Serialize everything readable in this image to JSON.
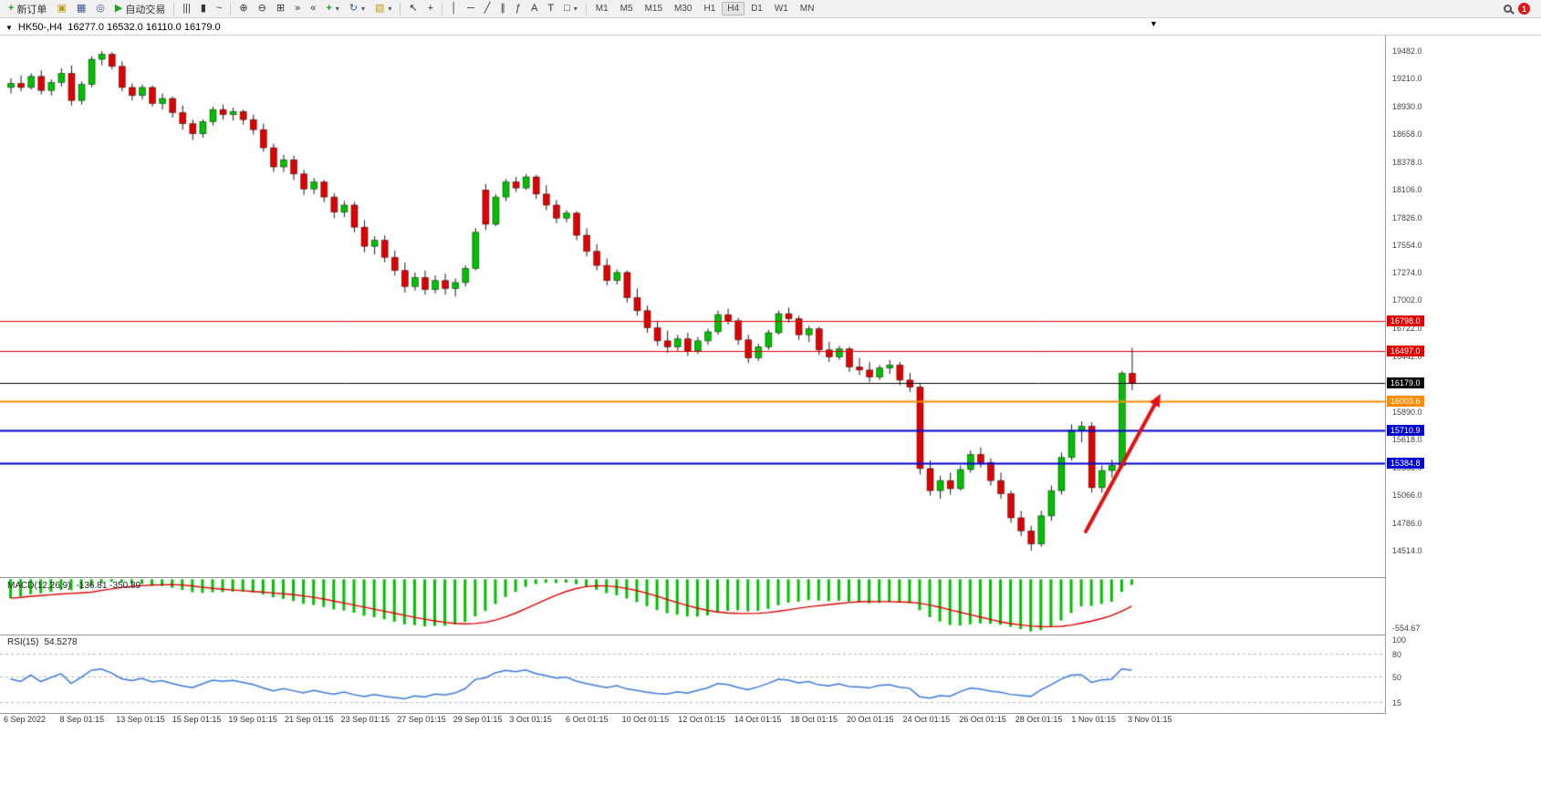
{
  "toolbar": {
    "new_order_label": "新订单",
    "auto_trading_label": "自动交易",
    "timeframes": [
      "M1",
      "M5",
      "M15",
      "M30",
      "H1",
      "H4",
      "D1",
      "W1",
      "MN"
    ],
    "active_timeframe": "H4",
    "notification_count": "1"
  },
  "icons": {
    "collapse": "▼",
    "new_order": "+",
    "data_window": "▣",
    "market_watch": "▦",
    "navigator": "◎",
    "autoplay": "▶",
    "chart_bars": "|||",
    "chart_candles": "▮",
    "chart_line": "~",
    "zoom_in": "⊕",
    "zoom_out": "⊖",
    "tile": "⊞",
    "autoscroll": "»",
    "shift": "«",
    "indicators": "+",
    "cycle": "↻",
    "template": "▧",
    "cursor": "↖",
    "crosshair": "+",
    "vline": "│",
    "hline": "─",
    "trend": "╱",
    "channel": "∥",
    "fibo": "ƒ",
    "text": "A",
    "label": "T",
    "shapes": "□",
    "dropdown": "▾",
    "scroll_marker": "▼"
  },
  "chart": {
    "symbol_tf": "HK50-,H4",
    "ohlc": "16277.0 16532.0 16110.0 16179.0"
  },
  "chart_data": {
    "type": "candlestick",
    "symbol": "HK50-",
    "timeframe": "H4",
    "title": "HK50-,H4  16277.0 16532.0 16110.0 16179.0",
    "colors": {
      "up": "#00c000",
      "down": "#e00000",
      "wick": "#1a1a1a",
      "macd_bar": "#00c000",
      "macd_signal": "#e00000",
      "rsi_line": "#3c78dc",
      "grid_dash": "#b5b5b5",
      "arrow": "#e21212"
    },
    "price_axis": {
      "top_price": 19636,
      "bottom_price": 14241,
      "labels": [
        19482.0,
        19210.0,
        18930.0,
        18658.0,
        18378.0,
        18106.0,
        17826.0,
        17554.0,
        17274.0,
        17002.0,
        16722.0,
        16442.0,
        15890.0,
        15618.0,
        15338.0,
        15066.0,
        14786.0,
        14514.0
      ]
    },
    "levels": [
      {
        "price": 16798.0,
        "label": "16798.0",
        "color": "#e00000",
        "lw": 1
      },
      {
        "price": 16497.0,
        "label": "16497.0",
        "color": "#e00000",
        "lw": 1
      },
      {
        "price": 16179.0,
        "label": "16179.0",
        "color": "#000000",
        "lw": 1
      },
      {
        "price": 16003.6,
        "label": "16003.6",
        "color": "#ff8c00",
        "lw": 2
      },
      {
        "price": 15710.9,
        "label": "15710.9",
        "color": "#0000d0",
        "lw": 2
      },
      {
        "price": 15384.8,
        "label": "15384.8",
        "color": "#0000d0",
        "lw": 2
      }
    ],
    "candles": [
      [
        19120,
        19210,
        19060,
        19160
      ],
      [
        19160,
        19240,
        19080,
        19120
      ],
      [
        19120,
        19260,
        19100,
        19230
      ],
      [
        19230,
        19290,
        19050,
        19090
      ],
      [
        19090,
        19200,
        19040,
        19170
      ],
      [
        19170,
        19310,
        19130,
        19260
      ],
      [
        19260,
        19340,
        18940,
        18990
      ],
      [
        18990,
        19180,
        18950,
        19150
      ],
      [
        19150,
        19430,
        19120,
        19400
      ],
      [
        19400,
        19482,
        19340,
        19450
      ],
      [
        19450,
        19470,
        19300,
        19330
      ],
      [
        19330,
        19380,
        19080,
        19120
      ],
      [
        19120,
        19160,
        18990,
        19040
      ],
      [
        19040,
        19150,
        19000,
        19120
      ],
      [
        19120,
        19140,
        18930,
        18960
      ],
      [
        18960,
        19060,
        18900,
        19010
      ],
      [
        19010,
        19030,
        18820,
        18870
      ],
      [
        18870,
        18940,
        18700,
        18760
      ],
      [
        18760,
        18800,
        18600,
        18660
      ],
      [
        18660,
        18800,
        18620,
        18780
      ],
      [
        18780,
        18930,
        18740,
        18900
      ],
      [
        18900,
        18950,
        18800,
        18850
      ],
      [
        18850,
        18920,
        18790,
        18880
      ],
      [
        18880,
        18900,
        18750,
        18800
      ],
      [
        18800,
        18850,
        18650,
        18700
      ],
      [
        18700,
        18760,
        18480,
        18520
      ],
      [
        18520,
        18560,
        18280,
        18330
      ],
      [
        18330,
        18450,
        18280,
        18400
      ],
      [
        18400,
        18440,
        18200,
        18260
      ],
      [
        18260,
        18300,
        18050,
        18110
      ],
      [
        18110,
        18220,
        18060,
        18180
      ],
      [
        18180,
        18200,
        17980,
        18030
      ],
      [
        18030,
        18070,
        17820,
        17880
      ],
      [
        17880,
        17990,
        17830,
        17950
      ],
      [
        17950,
        17980,
        17680,
        17730
      ],
      [
        17730,
        17800,
        17480,
        17540
      ],
      [
        17540,
        17640,
        17460,
        17600
      ],
      [
        17600,
        17650,
        17380,
        17430
      ],
      [
        17430,
        17500,
        17250,
        17300
      ],
      [
        17300,
        17380,
        17080,
        17140
      ],
      [
        17140,
        17280,
        17100,
        17230
      ],
      [
        17230,
        17300,
        17060,
        17110
      ],
      [
        17110,
        17250,
        17070,
        17200
      ],
      [
        17200,
        17270,
        17060,
        17120
      ],
      [
        17120,
        17220,
        17040,
        17180
      ],
      [
        17180,
        17350,
        17140,
        17320
      ],
      [
        17320,
        17720,
        17300,
        17680
      ],
      [
        18100,
        18160,
        17700,
        17760
      ],
      [
        17760,
        18060,
        17740,
        18030
      ],
      [
        18030,
        18210,
        17990,
        18180
      ],
      [
        18180,
        18230,
        18080,
        18120
      ],
      [
        18120,
        18260,
        18100,
        18230
      ],
      [
        18230,
        18250,
        18010,
        18060
      ],
      [
        18060,
        18150,
        17900,
        17950
      ],
      [
        17950,
        18000,
        17770,
        17820
      ],
      [
        17820,
        17900,
        17780,
        17870
      ],
      [
        17870,
        17890,
        17600,
        17650
      ],
      [
        17650,
        17720,
        17440,
        17490
      ],
      [
        17490,
        17560,
        17300,
        17350
      ],
      [
        17350,
        17420,
        17150,
        17200
      ],
      [
        17200,
        17310,
        17160,
        17280
      ],
      [
        17280,
        17300,
        16980,
        17030
      ],
      [
        17030,
        17120,
        16850,
        16900
      ],
      [
        16900,
        16950,
        16680,
        16730
      ],
      [
        16730,
        16800,
        16550,
        16600
      ],
      [
        16600,
        16700,
        16480,
        16540
      ],
      [
        16540,
        16660,
        16500,
        16620
      ],
      [
        16620,
        16680,
        16450,
        16500
      ],
      [
        16500,
        16640,
        16470,
        16600
      ],
      [
        16600,
        16720,
        16560,
        16690
      ],
      [
        16690,
        16900,
        16660,
        16860
      ],
      [
        16860,
        16920,
        16760,
        16800
      ],
      [
        16800,
        16830,
        16560,
        16610
      ],
      [
        16610,
        16660,
        16380,
        16430
      ],
      [
        16430,
        16570,
        16400,
        16540
      ],
      [
        16540,
        16710,
        16510,
        16680
      ],
      [
        16680,
        16900,
        16660,
        16870
      ],
      [
        16870,
        16930,
        16780,
        16820
      ],
      [
        16820,
        16850,
        16610,
        16660
      ],
      [
        16660,
        16750,
        16590,
        16720
      ],
      [
        16720,
        16740,
        16460,
        16510
      ],
      [
        16510,
        16590,
        16390,
        16440
      ],
      [
        16440,
        16550,
        16410,
        16520
      ],
      [
        16520,
        16540,
        16290,
        16340
      ],
      [
        16340,
        16430,
        16260,
        16310
      ],
      [
        16310,
        16390,
        16190,
        16240
      ],
      [
        16240,
        16360,
        16210,
        16330
      ],
      [
        16330,
        16410,
        16270,
        16360
      ],
      [
        16360,
        16390,
        16160,
        16210
      ],
      [
        16210,
        16280,
        16090,
        16140
      ],
      [
        16140,
        16170,
        15270,
        15330
      ],
      [
        15330,
        15410,
        15060,
        15110
      ],
      [
        15110,
        15260,
        15030,
        15210
      ],
      [
        15210,
        15290,
        15070,
        15130
      ],
      [
        15130,
        15360,
        15110,
        15320
      ],
      [
        15320,
        15510,
        15290,
        15470
      ],
      [
        15470,
        15540,
        15340,
        15390
      ],
      [
        15390,
        15430,
        15160,
        15210
      ],
      [
        15210,
        15290,
        15030,
        15080
      ],
      [
        15080,
        15110,
        14790,
        14840
      ],
      [
        14840,
        14910,
        14660,
        14710
      ],
      [
        14710,
        14760,
        14514,
        14580
      ],
      [
        14580,
        14910,
        14550,
        14860
      ],
      [
        14860,
        15160,
        14810,
        15110
      ],
      [
        15110,
        15490,
        15070,
        15440
      ],
      [
        15440,
        15770,
        15410,
        15710
      ],
      [
        15710,
        15800,
        15590,
        15750
      ],
      [
        15750,
        15790,
        15090,
        15140
      ],
      [
        15140,
        15360,
        15090,
        15310
      ],
      [
        15310,
        15420,
        15240,
        15360
      ],
      [
        15360,
        16300,
        15330,
        16277
      ],
      [
        16277,
        16532,
        16110,
        16179
      ]
    ],
    "dates": [
      "6 Sep 2022",
      "8 Sep 01:15",
      "13 Sep 01:15",
      "15 Sep 01:15",
      "19 Sep 01:15",
      "21 Sep 01:15",
      "23 Sep 01:15",
      "27 Sep 01:15",
      "29 Sep 01:15",
      "3 Oct 01:15",
      "6 Oct 01:15",
      "10 Oct 01:15",
      "12 Oct 01:15",
      "14 Oct 01:15",
      "18 Oct 01:15",
      "20 Oct 01:15",
      "24 Oct 01:15",
      "26 Oct 01:15",
      "28 Oct 01:15",
      "1 Nov 01:15",
      "3 Nov 01:15"
    ],
    "macd": {
      "name": "MACD(12,26,9)",
      "values": "-136.81 -350.89",
      "min_label": "-554.67",
      "params": [
        12,
        26,
        9
      ]
    },
    "rsi": {
      "name": "RSI(15)",
      "value": "54.5278",
      "period": 15,
      "axis_labels": [
        100,
        80,
        50,
        15
      ],
      "level_lines": [
        80,
        50,
        15
      ]
    },
    "annotation_arrow": {
      "from": [
        1190,
        583
      ],
      "to": [
        1272,
        432
      ]
    }
  }
}
